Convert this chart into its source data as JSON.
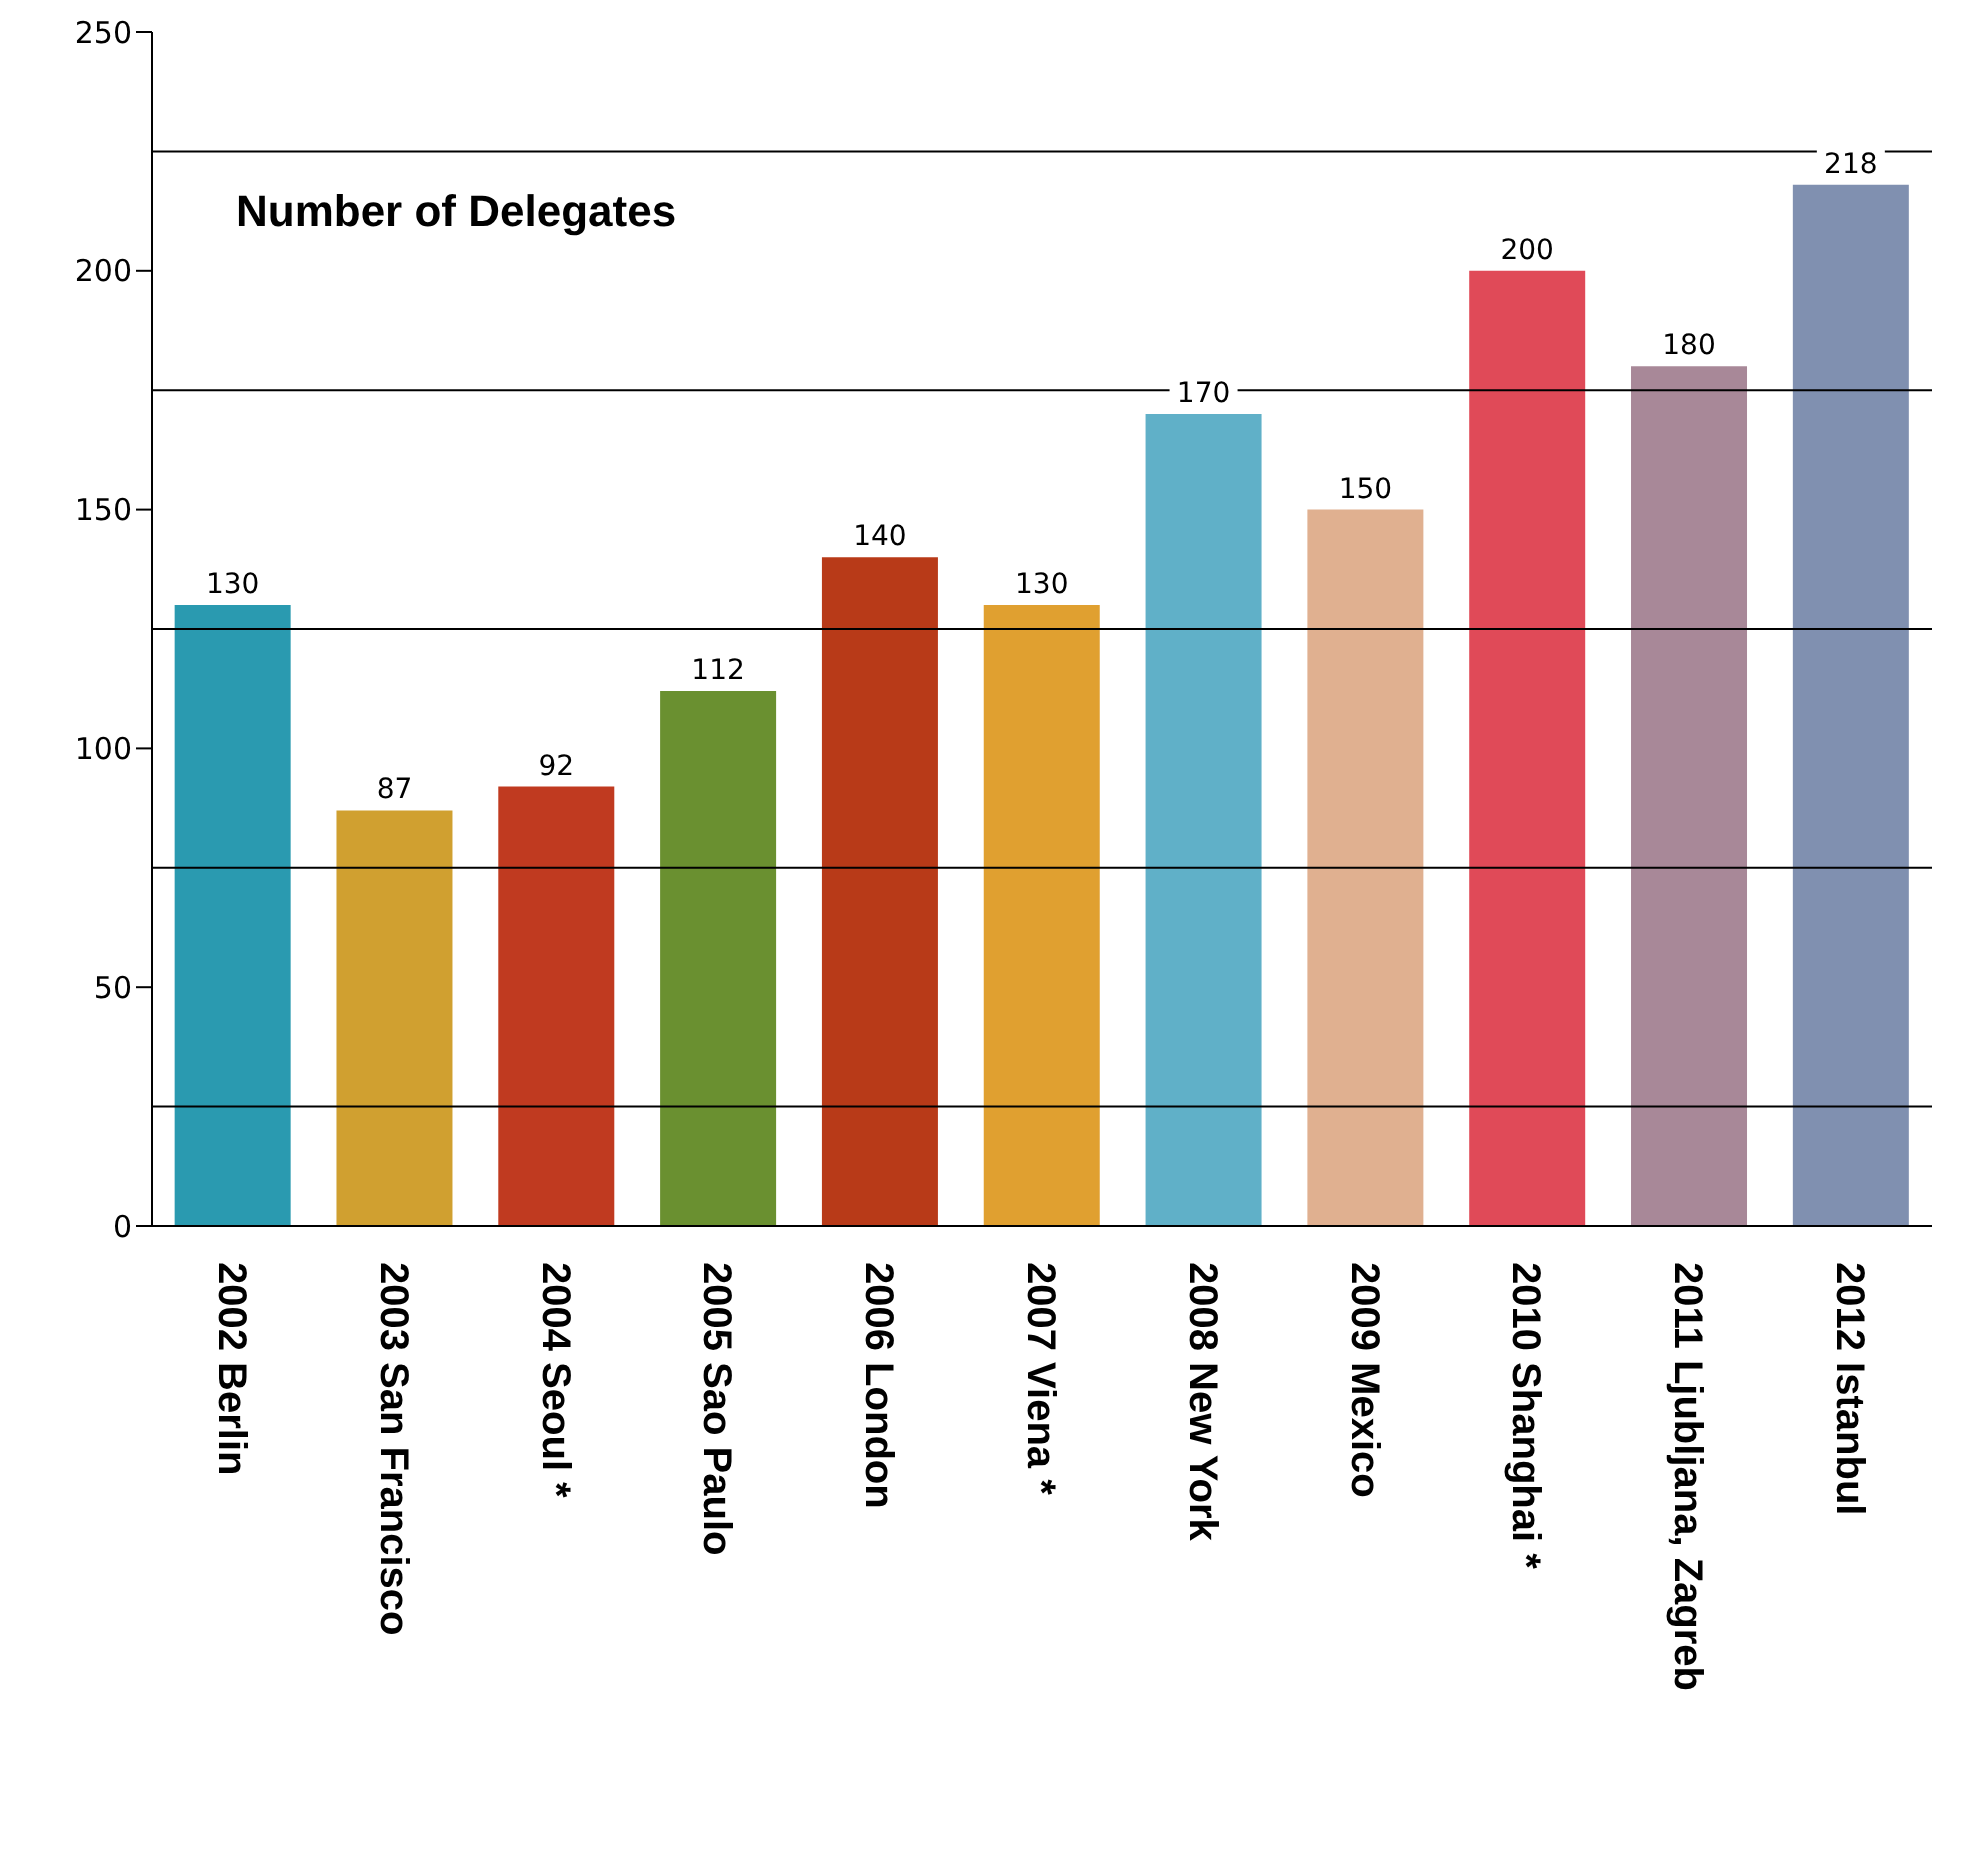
{
  "chart_data": {
    "type": "bar",
    "title": "Number of Delegates",
    "categories": [
      "2002 Berlin",
      "2003 San Francisco",
      "2004 Seoul *",
      "2005 Sao Paulo",
      "2006 London",
      "2007 Viena *",
      "2008 New York",
      "2009 Mexico",
      "2010 Shanghai *",
      "2011 Ljubljana, Zagreb",
      "2012 Istanbul"
    ],
    "values": [
      130,
      87,
      92,
      112,
      140,
      130,
      170,
      150,
      200,
      180,
      218
    ],
    "colors": [
      "#2a9ab0",
      "#d0a030",
      "#c03a20",
      "#6a9030",
      "#b83a18",
      "#e0a030",
      "#60b0c8",
      "#e0b090",
      "#e04a58",
      "#a88898",
      "#8090b0"
    ],
    "ylim": [
      0,
      250
    ],
    "yticks": [
      0,
      50,
      100,
      150,
      200,
      250
    ],
    "ref_lines": [
      {
        "axis": "y",
        "value": 25,
        "color": "#000000"
      },
      {
        "axis": "y",
        "value": 75,
        "color": "#000000"
      },
      {
        "axis": "y",
        "value": 125,
        "color": "#000000"
      },
      {
        "axis": "y",
        "value": 175,
        "color": "#000000"
      },
      {
        "axis": "y",
        "value": 225,
        "color": "#000000"
      }
    ],
    "data_labels": true
  }
}
